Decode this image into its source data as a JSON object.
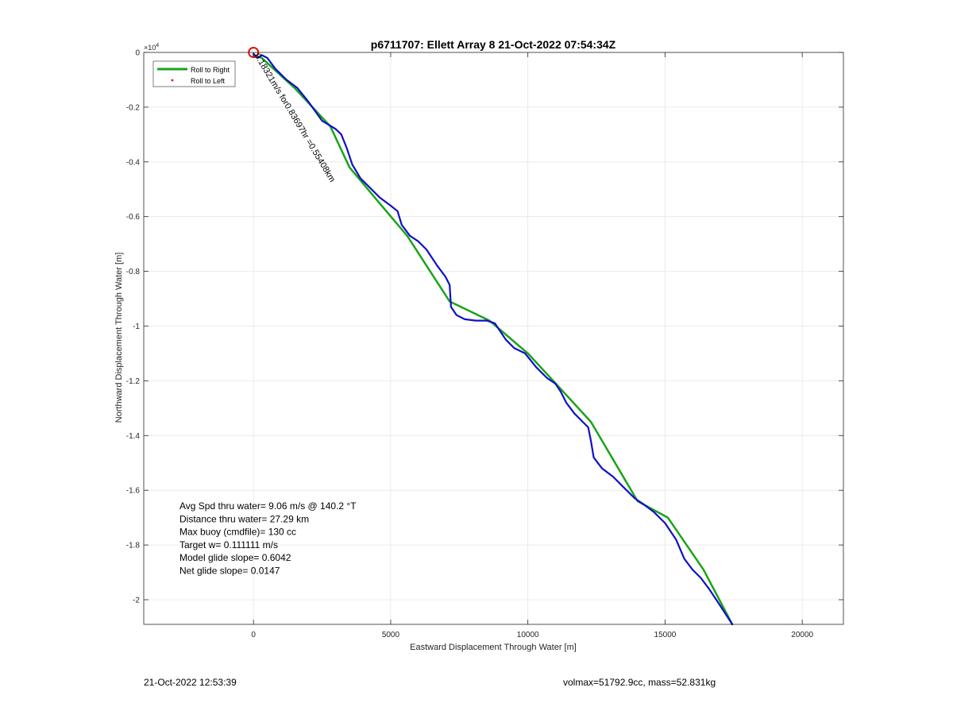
{
  "chart_data": {
    "type": "line",
    "title": "p6711707: Ellett Array 8 21-Oct-2022 07:54:34Z",
    "xlabel": "Eastward Displacement Through Water [m]",
    "ylabel": "Northward Displacement Through Water [m]",
    "xlim": [
      -4000,
      21500
    ],
    "ylim": [
      -20900,
      0
    ],
    "xticks": [
      0,
      5000,
      10000,
      15000,
      20000
    ],
    "xtick_labels": [
      "0",
      "5000",
      "10000",
      "15000",
      "20000"
    ],
    "yticks": [
      0,
      -2000,
      -4000,
      -6000,
      -8000,
      -10000,
      -12000,
      -14000,
      -16000,
      -18000,
      -20000
    ],
    "ytick_labels": [
      "0",
      "-0.2",
      "-0.4",
      "-0.6",
      "-0.8",
      "-1",
      "-1.2",
      "-1.4",
      "-1.6",
      "-1.8",
      "-2"
    ],
    "y_exponent": "×10",
    "y_exponent_power": "4",
    "grid": true,
    "legend_position": "top-left",
    "legend": [
      {
        "name": "Roll to Right",
        "color": "#1aa31a",
        "style": "line"
      },
      {
        "name": "Roll to Left",
        "color": "#e01010",
        "style": "dot"
      }
    ],
    "series": [
      {
        "name": "Roll to Right",
        "color": "#1aa31a",
        "x": [
          0,
          300,
          1500,
          2800,
          3500,
          4500,
          5600,
          7150,
          8600,
          10000,
          11200,
          12300,
          14000,
          15100,
          16400,
          17450
        ],
        "y": [
          -100,
          -200,
          -1300,
          -2700,
          -4200,
          -5400,
          -6700,
          -9100,
          -9800,
          -11000,
          -12300,
          -13500,
          -16400,
          -17000,
          -18900,
          -20900
        ]
      },
      {
        "name": "",
        "color": "#1010c8",
        "x": [
          0,
          150,
          300,
          500,
          800,
          1200,
          1600,
          2000,
          2500,
          3000,
          3200,
          3400,
          3600,
          3900,
          4200,
          4600,
          5000,
          5250,
          5400,
          5700,
          6000,
          6300,
          6700,
          7000,
          7150,
          7200,
          7400,
          7700,
          8100,
          8500,
          8800,
          9000,
          9200,
          9500,
          9900,
          10300,
          10700,
          11000,
          11200,
          11400,
          11700,
          12000,
          12200,
          12300,
          12400,
          12700,
          13100,
          13500,
          13900,
          14200,
          14600,
          15000,
          15400,
          15700,
          16000,
          16300,
          16600,
          17000,
          17450
        ],
        "y": [
          -50,
          -200,
          -100,
          -200,
          -600,
          -1000,
          -1300,
          -1800,
          -2500,
          -2800,
          -3000,
          -3500,
          -4100,
          -4600,
          -4900,
          -5300,
          -5600,
          -5800,
          -6300,
          -6700,
          -6900,
          -7200,
          -7800,
          -8200,
          -8500,
          -9300,
          -9600,
          -9750,
          -9800,
          -9800,
          -9900,
          -10200,
          -10500,
          -10800,
          -11000,
          -11500,
          -11900,
          -12100,
          -12400,
          -12800,
          -13200,
          -13500,
          -13700,
          -14200,
          -14800,
          -15200,
          -15500,
          -15900,
          -16300,
          -16500,
          -16800,
          -17200,
          -17800,
          -18500,
          -18900,
          -19200,
          -19600,
          -20200,
          -20900
        ]
      }
    ],
    "start_marker": {
      "x": 0,
      "y": 0,
      "color": "#e01010"
    },
    "annotations": [
      {
        "text": "0.18321m/s for0.83697hr =0.55408km",
        "x": 0,
        "y": -200,
        "rotation": 59
      }
    ],
    "stats": [
      "Avg Spd thru water=  9.06 m/s @ 140.2 °T",
      "Distance thru water= 27.29 km",
      "Max buoy (cmdfile)= 130 cc",
      "Target w= 0.111111 m/s",
      "Model glide slope= 0.6042",
      "Net glide slope= 0.0147"
    ]
  },
  "footer": {
    "left": "21-Oct-2022 12:53:39",
    "right": "volmax=51792.9cc, mass=52.831kg"
  }
}
